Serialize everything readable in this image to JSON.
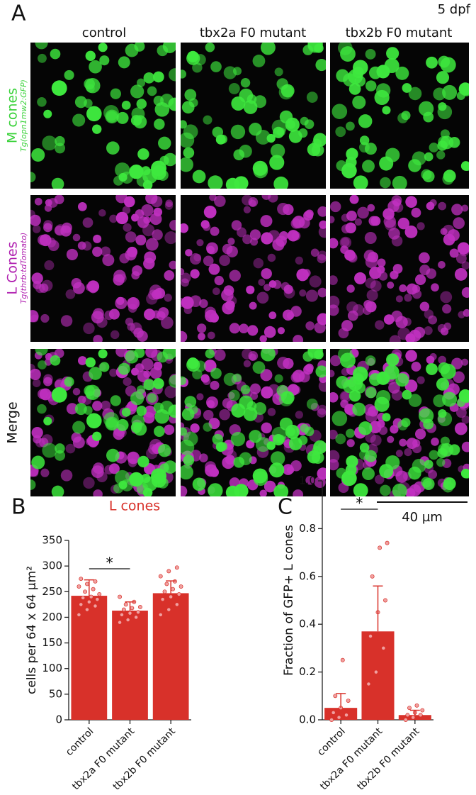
{
  "panel_a": {
    "letter": "A",
    "stage": "5 dpf",
    "columns": [
      "control",
      "tbx2a F0 mutant",
      "tbx2b F0 mutant"
    ],
    "rows": [
      {
        "label": "M cones",
        "sublabel": "Tg(opn1mw2:GFP)"
      },
      {
        "label": "L Cones",
        "sublabel": "Tg(thrb:tdTomato)"
      },
      {
        "label": "Merge"
      }
    ],
    "scale_bar": "40 µm"
  },
  "chart_data": [
    {
      "type": "bar",
      "panel": "B",
      "title": "L cones",
      "ylabel": "cells per 64 x 64 µm²",
      "categories": [
        "control",
        "tbx2a F0 mutant",
        "tbx2b F0 mutant"
      ],
      "values": [
        242,
        213,
        247
      ],
      "errors": [
        31,
        17,
        24
      ],
      "points": [
        [
          205,
          215,
          222,
          225,
          230,
          235,
          238,
          240,
          245,
          250,
          255,
          260,
          265,
          270,
          275
        ],
        [
          190,
          195,
          200,
          205,
          208,
          210,
          215,
          218,
          220,
          225,
          230,
          240
        ],
        [
          205,
          215,
          225,
          235,
          240,
          245,
          250,
          255,
          260,
          265,
          270,
          280,
          290,
          297
        ]
      ],
      "color": "#d8312a",
      "point_color": "#f0a0a0",
      "title_color": "#d8312a",
      "ylim": [
        0,
        350
      ],
      "yticks": [
        0,
        50,
        100,
        150,
        200,
        250,
        300,
        350
      ],
      "significance": "*"
    },
    {
      "type": "bar",
      "panel": "C",
      "ylabel": "Fraction of GFP+ L cones",
      "categories": [
        "control",
        "tbx2a F0 mutant",
        "tbx2b F0 mutant"
      ],
      "values": [
        0.05,
        0.37,
        0.02
      ],
      "errors": [
        0.06,
        0.19,
        0.02
      ],
      "points": [
        [
          0,
          0.01,
          0.02,
          0.03,
          0.05,
          0.08,
          0.1,
          0.25
        ],
        [
          0.15,
          0.2,
          0.3,
          0.35,
          0.45,
          0.5,
          0.6,
          0.72,
          0.74
        ],
        [
          0,
          0.01,
          0.02,
          0.02,
          0.03,
          0.04,
          0.05,
          0.06
        ]
      ],
      "color": "#d8312a",
      "point_color": "#f0a0a0",
      "ylim": [
        0,
        1
      ],
      "yticks": [
        {
          "value": 0,
          "label": "0.0"
        },
        0.2,
        0.4,
        0.6,
        0.8,
        {
          "value": 1,
          "label": "1.0"
        }
      ],
      "significance": "*"
    }
  ]
}
